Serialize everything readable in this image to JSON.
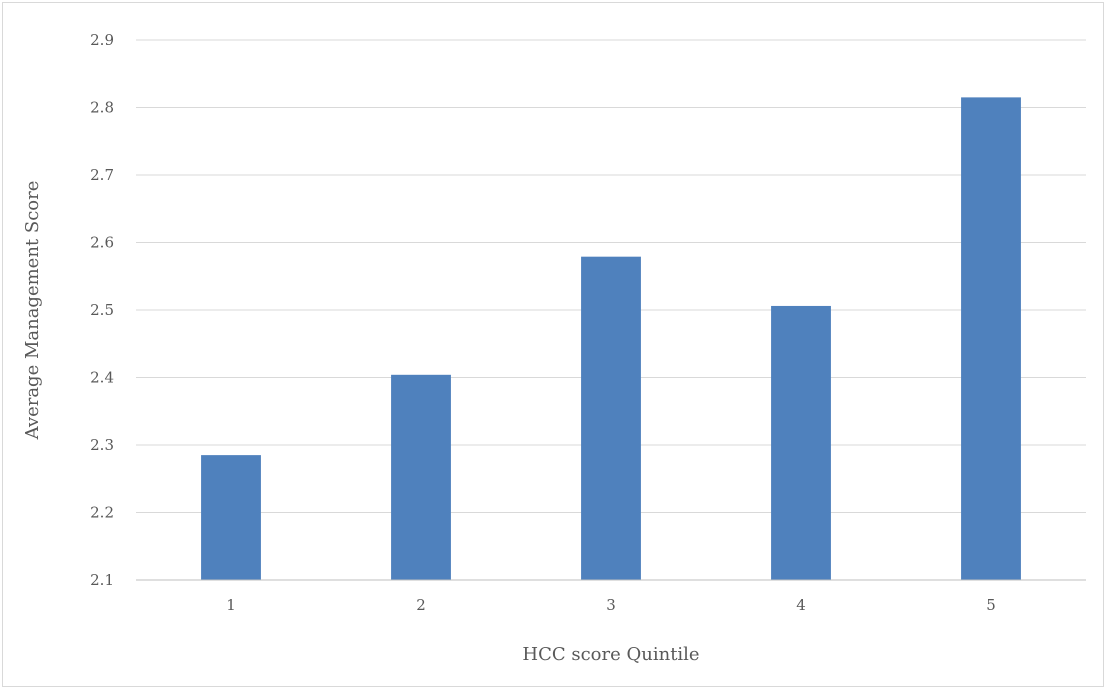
{
  "chart_data": {
    "type": "bar",
    "title": "",
    "xlabel": "HCC score Quintile",
    "ylabel": "Average Management Score",
    "categories": [
      "1",
      "2",
      "3",
      "4",
      "5"
    ],
    "series": [
      {
        "values": [
          2.285,
          2.404,
          2.579,
          2.506,
          2.815
        ]
      }
    ],
    "ylim": [
      2.1,
      2.9
    ],
    "yticks": [
      "2.1",
      "2.2",
      "2.3",
      "2.4",
      "2.5",
      "2.6",
      "2.7",
      "2.8",
      "2.9"
    ],
    "grid": true,
    "legend": "none",
    "bar_color": "#4f81bd"
  }
}
